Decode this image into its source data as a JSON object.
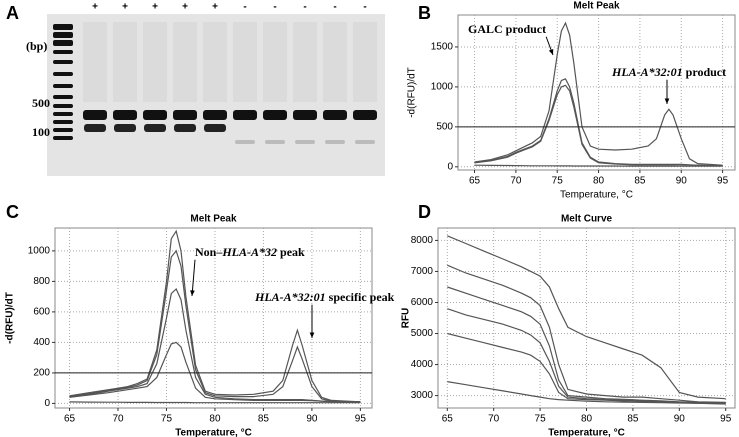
{
  "gel": {
    "panel_label": "A",
    "unit_label": "(bp)",
    "size_labels": [
      "500",
      "100"
    ],
    "lane_labels": [
      "+",
      "+",
      "+",
      "+",
      "+",
      "-",
      "-",
      "-",
      "-",
      "-"
    ]
  },
  "chart_data": [
    {
      "type": "line",
      "panel_label": "B",
      "title": "Melt Peak",
      "y_label": "-d(RFU)/dT",
      "x_label": "Temperature, °C",
      "xlim": [
        63,
        96.5
      ],
      "xticks": [
        65,
        70,
        75,
        80,
        85,
        90,
        95
      ],
      "ylim": [
        -40,
        1900
      ],
      "yticks": [
        0,
        500,
        1000,
        1500
      ],
      "grid": true,
      "hlines": [
        500
      ],
      "annotations": [
        [
          "GALC product"
        ],
        [
          "HLA-A*32:01",
          " product"
        ]
      ],
      "x": [
        65,
        67,
        69,
        70,
        71,
        72,
        73,
        74,
        75,
        75.5,
        76,
        76.5,
        77,
        78,
        79,
        80,
        82,
        84,
        86,
        87,
        88,
        88.5,
        89,
        90,
        91,
        92,
        95
      ],
      "series": [
        {
          "color": "#555555",
          "values": [
            60,
            90,
            150,
            200,
            250,
            300,
            380,
            700,
            1400,
            1700,
            1800,
            1650,
            1300,
            500,
            260,
            220,
            210,
            220,
            260,
            350,
            650,
            720,
            650,
            350,
            100,
            40,
            20
          ]
        },
        {
          "color": "#555555",
          "values": [
            50,
            80,
            130,
            180,
            220,
            260,
            330,
            600,
            950,
            1080,
            1100,
            1000,
            800,
            300,
            120,
            60,
            40,
            30,
            30,
            30,
            30,
            30,
            30,
            30,
            25,
            20,
            15
          ]
        },
        {
          "color": "#555555",
          "values": [
            50,
            75,
            120,
            170,
            210,
            250,
            320,
            580,
            900,
            1000,
            1020,
            950,
            750,
            280,
            110,
            50,
            35,
            25,
            25,
            25,
            25,
            25,
            25,
            25,
            20,
            18,
            15
          ]
        },
        {
          "color": "#555555",
          "values": [
            20,
            18,
            16,
            15,
            14,
            13,
            12,
            12,
            11,
            11,
            11,
            11,
            10,
            10,
            10,
            10,
            10,
            9,
            9,
            9,
            9,
            9,
            9,
            8,
            8,
            8,
            8
          ]
        }
      ]
    },
    {
      "type": "line",
      "panel_label": "C",
      "title": "Melt Peak",
      "y_label": "-d(RFU)/dT",
      "x_label": "Temperature, °C",
      "xlim": [
        63.5,
        96.2
      ],
      "xticks": [
        65,
        70,
        75,
        80,
        85,
        90,
        95
      ],
      "ylim": [
        -30,
        1150
      ],
      "yticks": [
        0,
        200,
        400,
        600,
        800,
        1000
      ],
      "grid": true,
      "hlines": [
        200
      ],
      "annotations": [
        [
          "Non–",
          "HLA-A*32",
          " peak"
        ],
        [
          "HLA-A*32:01",
          " specific peak"
        ]
      ],
      "x": [
        65,
        67,
        69,
        70,
        71,
        72,
        73,
        74,
        75,
        75.5,
        76,
        76.5,
        77,
        78,
        79,
        80,
        82,
        84,
        86,
        87,
        88,
        88.5,
        89,
        90,
        91,
        92,
        95
      ],
      "series": [
        {
          "color": "#555555",
          "values": [
            50,
            70,
            90,
            100,
            110,
            130,
            160,
            350,
            800,
            1080,
            1130,
            1000,
            700,
            250,
            80,
            60,
            55,
            60,
            80,
            150,
            380,
            480,
            380,
            150,
            40,
            20,
            10
          ]
        },
        {
          "color": "#555555",
          "values": [
            45,
            65,
            85,
            95,
            105,
            120,
            150,
            320,
            740,
            960,
            1000,
            900,
            640,
            220,
            70,
            50,
            45,
            45,
            60,
            110,
            280,
            370,
            290,
            110,
            30,
            15,
            10
          ]
        },
        {
          "color": "#555555",
          "values": [
            40,
            60,
            80,
            90,
            100,
            110,
            130,
            260,
            560,
            720,
            750,
            680,
            480,
            170,
            60,
            40,
            30,
            25,
            25,
            25,
            25,
            25,
            25,
            20,
            15,
            12,
            10
          ]
        },
        {
          "color": "#555555",
          "values": [
            40,
            55,
            70,
            80,
            90,
            100,
            110,
            170,
            320,
            390,
            400,
            370,
            270,
            100,
            40,
            30,
            25,
            20,
            20,
            20,
            20,
            20,
            20,
            18,
            15,
            12,
            10
          ]
        },
        {
          "color": "#555555",
          "values": [
            10,
            9,
            8,
            8,
            7,
            7,
            7,
            6,
            6,
            6,
            6,
            6,
            6,
            5,
            5,
            5,
            5,
            5,
            5,
            5,
            5,
            5,
            5,
            5,
            5,
            5,
            5
          ]
        }
      ]
    },
    {
      "type": "line",
      "panel_label": "D",
      "title": "Melt Curve",
      "y_label": "RFU",
      "x_label": "Temperature, °C",
      "xlim": [
        64,
        96
      ],
      "xticks": [
        65,
        70,
        75,
        80,
        85,
        90,
        95
      ],
      "ylim": [
        2600,
        8400
      ],
      "yticks": [
        3000,
        4000,
        5000,
        6000,
        7000,
        8000
      ],
      "grid": true,
      "x": [
        65,
        67,
        69,
        71,
        73,
        74,
        75,
        76,
        77,
        78,
        80,
        82,
        84,
        86,
        88,
        90,
        92,
        95
      ],
      "series": [
        {
          "color": "#555555",
          "values": [
            8150,
            7900,
            7650,
            7400,
            7150,
            7000,
            6850,
            6500,
            5800,
            5200,
            4900,
            4700,
            4500,
            4300,
            3900,
            3100,
            2950,
            2900
          ]
        },
        {
          "color": "#555555",
          "values": [
            7200,
            6950,
            6750,
            6550,
            6300,
            6150,
            5900,
            5200,
            4000,
            3200,
            3050,
            3000,
            2950,
            2950,
            2900,
            2850,
            2800,
            2780
          ]
        },
        {
          "color": "#555555",
          "values": [
            6500,
            6300,
            6100,
            5900,
            5700,
            5550,
            5300,
            4600,
            3500,
            3000,
            2950,
            2900,
            2880,
            2850,
            2830,
            2800,
            2780,
            2760
          ]
        },
        {
          "color": "#555555",
          "values": [
            5800,
            5600,
            5450,
            5300,
            5100,
            4950,
            4700,
            4100,
            3300,
            2950,
            2900,
            2870,
            2850,
            2830,
            2800,
            2780,
            2760,
            2740
          ]
        },
        {
          "color": "#555555",
          "values": [
            5000,
            4850,
            4700,
            4550,
            4400,
            4300,
            4100,
            3700,
            3100,
            2900,
            2870,
            2850,
            2830,
            2810,
            2790,
            2770,
            2750,
            2730
          ]
        },
        {
          "color": "#555555",
          "values": [
            3450,
            3350,
            3250,
            3150,
            3050,
            3000,
            2950,
            2900,
            2870,
            2850,
            2820,
            2800,
            2790,
            2780,
            2770,
            2760,
            2750,
            2740
          ]
        }
      ]
    }
  ]
}
